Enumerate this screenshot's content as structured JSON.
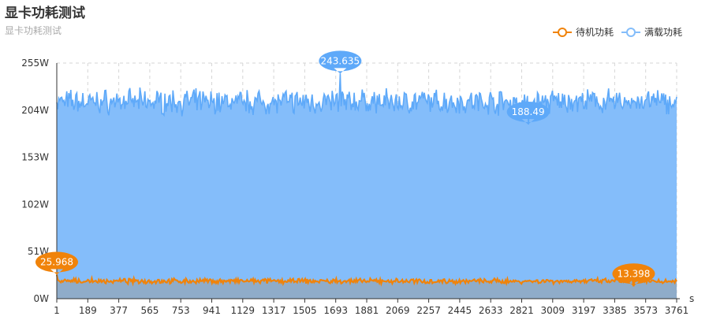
{
  "chart_data": {
    "type": "area",
    "title": "显卡功耗测试",
    "subtitle": "显卡功耗测试",
    "xlabel": "s",
    "ylabel": "",
    "x_ticks": [
      "1",
      "189",
      "377",
      "565",
      "753",
      "941",
      "1129",
      "1317",
      "1505",
      "1693",
      "1881",
      "2069",
      "2257",
      "2445",
      "2633",
      "2821",
      "3009",
      "3197",
      "3385",
      "3573",
      "3761"
    ],
    "xlim": [
      1,
      3761
    ],
    "y_ticks": [
      "0W",
      "51W",
      "102W",
      "153W",
      "204W",
      "255W"
    ],
    "ylim": [
      0,
      255
    ],
    "grid": true,
    "legend_position": "top-right",
    "series": [
      {
        "name": "待机功耗",
        "color": "#f0830a",
        "typical_range": [
          16,
          22
        ],
        "max": {
          "x": 1,
          "value": 25.968,
          "label": "25.968"
        },
        "min": {
          "x": 3500,
          "value": 13.398,
          "label": "13.398"
        }
      },
      {
        "name": "满载功耗",
        "color": "#5ea9f9",
        "fill": "#84bdfa",
        "typical_range": [
          198,
          228
        ],
        "max": {
          "x": 1720,
          "value": 243.635,
          "label": "243.635"
        },
        "min": {
          "x": 2860,
          "value": 188.49,
          "label": "188.49"
        }
      }
    ]
  }
}
